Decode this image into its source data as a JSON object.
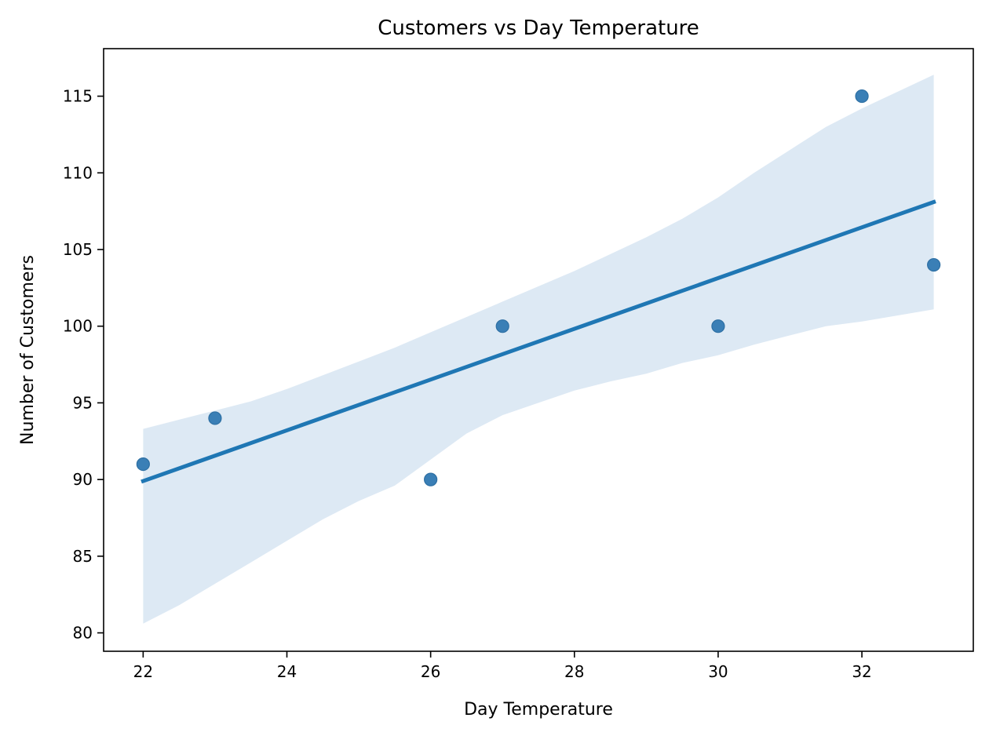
{
  "chart_data": {
    "type": "scatter",
    "title": "Customers vs Day Temperature",
    "xlabel": "Day Temperature",
    "ylabel": "Number of Customers",
    "xlim": [
      21.45,
      33.55
    ],
    "ylim": [
      78.8,
      118.1
    ],
    "xticks": [
      22,
      24,
      26,
      28,
      30,
      32
    ],
    "yticks": [
      80,
      85,
      90,
      95,
      100,
      105,
      110,
      115
    ],
    "grid": false,
    "points": [
      {
        "x": 22,
        "y": 91
      },
      {
        "x": 23,
        "y": 94
      },
      {
        "x": 26,
        "y": 90
      },
      {
        "x": 27,
        "y": 100
      },
      {
        "x": 30,
        "y": 100
      },
      {
        "x": 32,
        "y": 115
      },
      {
        "x": 33,
        "y": 104
      }
    ],
    "regression_line": {
      "x": [
        22,
        33
      ],
      "y": [
        89.9,
        108.1
      ]
    },
    "confidence_band": {
      "x": [
        22,
        22.5,
        23,
        23.5,
        24,
        24.5,
        25,
        25.5,
        26,
        26.5,
        27,
        27.5,
        28,
        28.5,
        29,
        29.5,
        30,
        30.5,
        31,
        31.5,
        32,
        32.5,
        33
      ],
      "upper": [
        93.3,
        93.9,
        94.5,
        95.1,
        95.9,
        96.8,
        97.7,
        98.6,
        99.6,
        100.6,
        101.6,
        102.6,
        103.6,
        104.7,
        105.8,
        107.0,
        108.4,
        110.0,
        111.5,
        113.0,
        114.2,
        115.3,
        116.4
      ],
      "lower": [
        80.6,
        81.8,
        83.2,
        84.6,
        86.0,
        87.4,
        88.6,
        89.6,
        91.3,
        93.0,
        94.2,
        95.0,
        95.8,
        96.4,
        96.9,
        97.6,
        98.1,
        98.8,
        99.4,
        100.0,
        100.3,
        100.7,
        101.1
      ]
    },
    "colors": {
      "points": "#3a7fb6",
      "point_edge": "#2d6fa3",
      "line": "#1f77b4",
      "band": "#dde9f4"
    }
  }
}
